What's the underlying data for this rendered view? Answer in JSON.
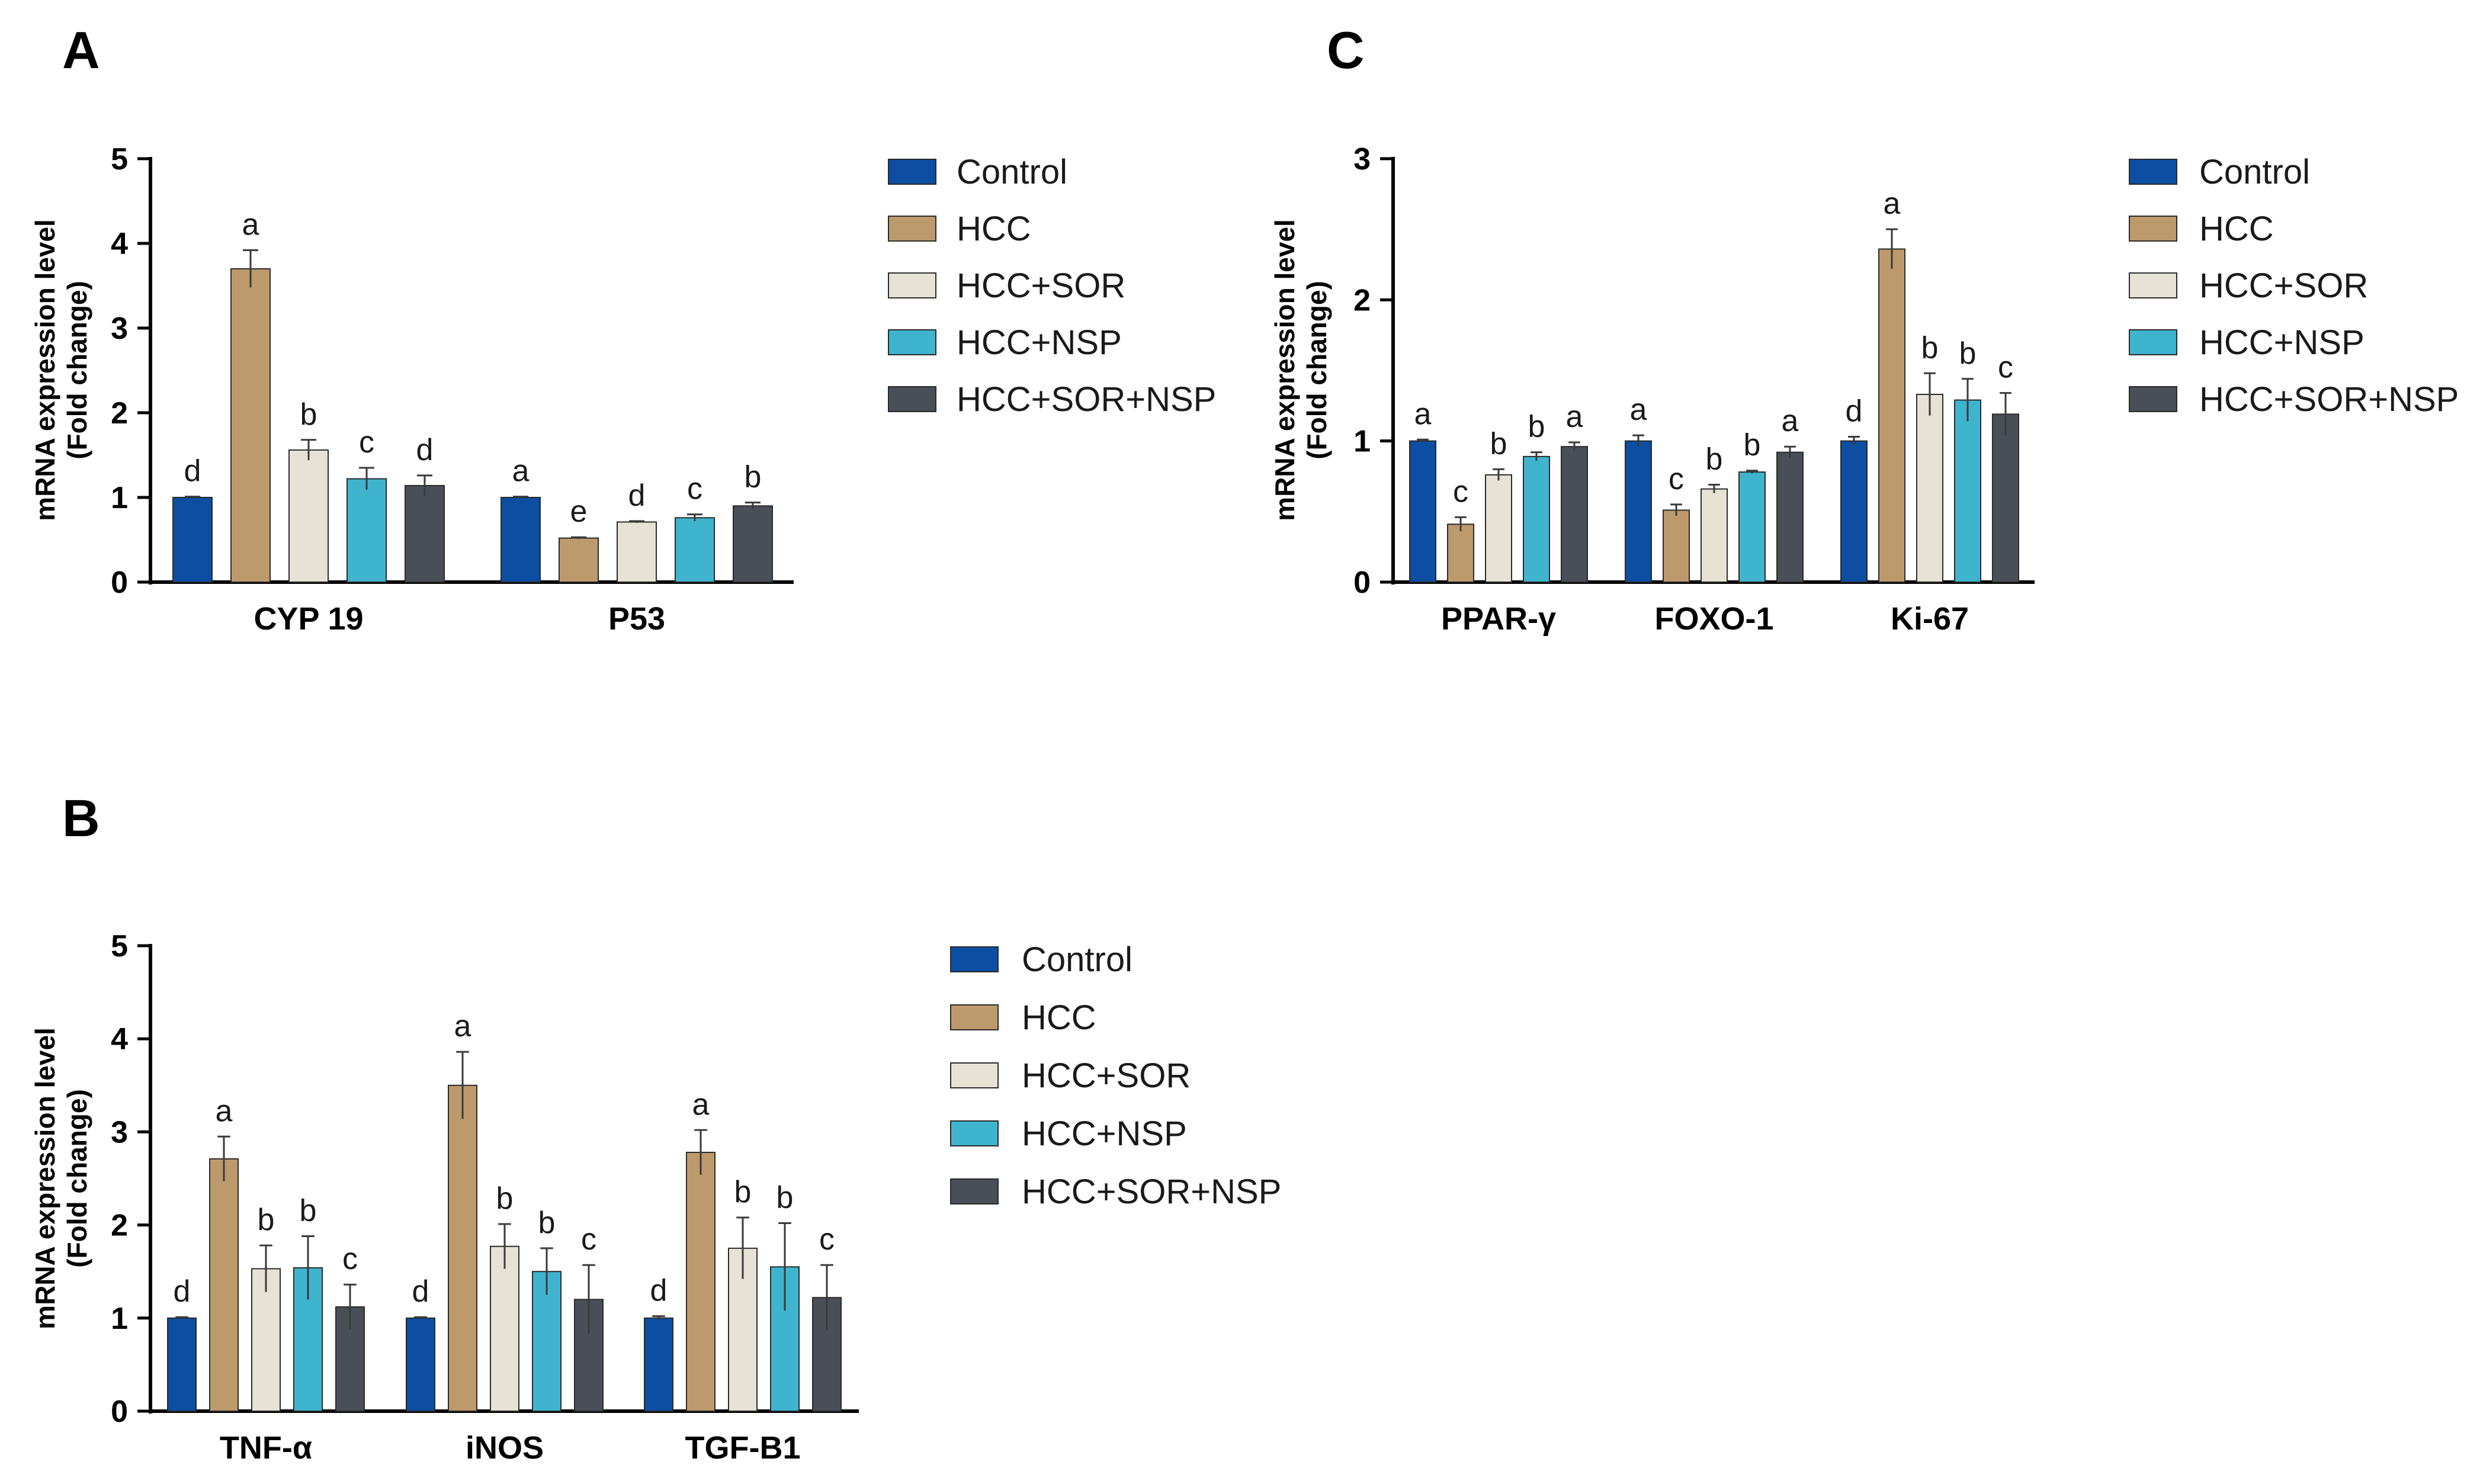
{
  "chart_data": [
    {
      "panel": "A",
      "type": "bar",
      "ylabel": "mRNA expression level",
      "ylabel2": "(Fold change)",
      "ylim": [
        0,
        5
      ],
      "yticks": [
        0,
        1,
        2,
        3,
        4,
        5
      ],
      "categories": [
        "CYP 19",
        "P53"
      ],
      "series": [
        {
          "name": "Control",
          "color": "#0b4ea2",
          "values": [
            1.0,
            1.0
          ],
          "errors": [
            0.01,
            0.01
          ],
          "sig": [
            "d",
            "a"
          ]
        },
        {
          "name": "HCC",
          "color": "#bd9a6c",
          "values": [
            3.7,
            0.52
          ],
          "errors": [
            0.22,
            0.01
          ],
          "sig": [
            "a",
            "e"
          ]
        },
        {
          "name": "HCC+SOR",
          "color": "#e6e3d6",
          "values": [
            1.56,
            0.71
          ],
          "errors": [
            0.12,
            0.01
          ],
          "sig": [
            "b",
            "d"
          ]
        },
        {
          "name": "HCC+NSP",
          "color": "#3fb4cf",
          "values": [
            1.22,
            0.76
          ],
          "errors": [
            0.13,
            0.04
          ],
          "sig": [
            "c",
            "c"
          ]
        },
        {
          "name": "HCC+SOR+NSP",
          "color": "#4a4f57",
          "values": [
            1.14,
            0.9
          ],
          "errors": [
            0.12,
            0.04
          ],
          "sig": [
            "d",
            "b"
          ]
        }
      ]
    },
    {
      "panel": "B",
      "type": "bar",
      "ylabel": "mRNA expression level",
      "ylabel2": "(Fold change)",
      "ylim": [
        0,
        5
      ],
      "yticks": [
        0,
        1,
        2,
        3,
        4,
        5
      ],
      "categories": [
        "TNF-α",
        "iNOS",
        "TGF-B1"
      ],
      "series": [
        {
          "name": "Control",
          "color": "#0b4ea2",
          "values": [
            1.0,
            1.0,
            1.0
          ],
          "errors": [
            0.01,
            0.01,
            0.02
          ],
          "sig": [
            "d",
            "d",
            "d"
          ]
        },
        {
          "name": "HCC",
          "color": "#bd9a6c",
          "values": [
            2.71,
            3.5,
            2.78
          ],
          "errors": [
            0.24,
            0.36,
            0.24
          ],
          "sig": [
            "a",
            "a",
            "a"
          ]
        },
        {
          "name": "HCC+SOR",
          "color": "#e6e3d6",
          "values": [
            1.53,
            1.77,
            1.75
          ],
          "errors": [
            0.25,
            0.24,
            0.33
          ],
          "sig": [
            "b",
            "b",
            "b"
          ]
        },
        {
          "name": "HCC+NSP",
          "color": "#3fb4cf",
          "values": [
            1.54,
            1.5,
            1.55
          ],
          "errors": [
            0.34,
            0.25,
            0.47
          ],
          "sig": [
            "b",
            "b",
            "b"
          ]
        },
        {
          "name": "HCC+SOR+NSP",
          "color": "#4a4f57",
          "values": [
            1.12,
            1.2,
            1.22
          ],
          "errors": [
            0.24,
            0.37,
            0.35
          ],
          "sig": [
            "c",
            "c",
            "c"
          ]
        }
      ]
    },
    {
      "panel": "C",
      "type": "bar",
      "ylabel": "mRNA expression level",
      "ylabel2": "(Fold change)",
      "ylim": [
        0,
        3
      ],
      "yticks": [
        0,
        1,
        2,
        3
      ],
      "categories": [
        "PPAR-γ",
        "FOXO-1",
        "Ki-67"
      ],
      "series": [
        {
          "name": "Control",
          "color": "#0b4ea2",
          "values": [
            1.0,
            1.0,
            1.0
          ],
          "errors": [
            0.01,
            0.04,
            0.03
          ],
          "sig": [
            "a",
            "a",
            "d"
          ]
        },
        {
          "name": "HCC",
          "color": "#bd9a6c",
          "values": [
            0.41,
            0.51,
            2.36
          ],
          "errors": [
            0.05,
            0.04,
            0.14
          ],
          "sig": [
            "c",
            "c",
            "a"
          ]
        },
        {
          "name": "HCC+SOR",
          "color": "#e6e3d6",
          "values": [
            0.76,
            0.66,
            1.33
          ],
          "errors": [
            0.04,
            0.03,
            0.15
          ],
          "sig": [
            "b",
            "b",
            "b"
          ]
        },
        {
          "name": "HCC+NSP",
          "color": "#3fb4cf",
          "values": [
            0.89,
            0.78,
            1.29
          ],
          "errors": [
            0.03,
            0.01,
            0.15
          ],
          "sig": [
            "b",
            "b",
            "b"
          ]
        },
        {
          "name": "HCC+SOR+NSP",
          "color": "#4a4f57",
          "values": [
            0.96,
            0.92,
            1.19
          ],
          "errors": [
            0.03,
            0.04,
            0.15
          ],
          "sig": [
            "a",
            "a",
            "c"
          ]
        }
      ]
    }
  ]
}
